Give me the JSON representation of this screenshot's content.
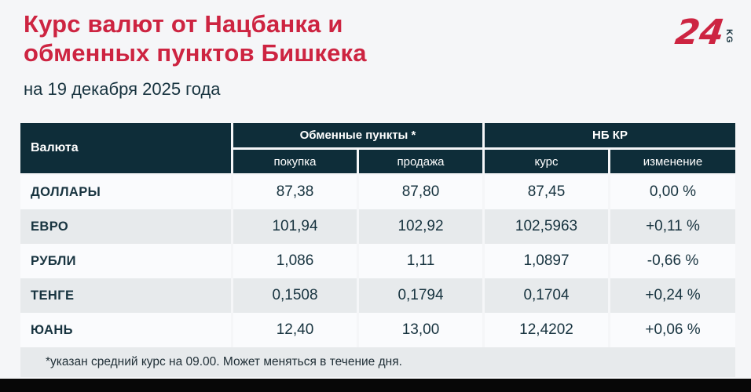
{
  "page": {
    "title_line1": "Курс валют от Нацбанка и",
    "title_line2": "обменных пунктов Бишкека",
    "subtitle": "на 19 декабря 2025 года"
  },
  "logo": {
    "number": "24",
    "suffix": "KG"
  },
  "colors": {
    "accent_red": "#cd2441",
    "header_navy": "#0e2d39",
    "stripe_gray": "#e7eaec",
    "row_white": "#fafbfd",
    "page_bg": "#f5f6f8",
    "bottom_bar_black": "#070707"
  },
  "chart_data": {
    "type": "table",
    "title": "Курс валют от Нацбанка и обменных пунктов Бишкека",
    "subtitle": "на 19 декабря 2025 года",
    "header": {
      "currency_col": "Валюта",
      "group_exchange": "Обменные пункты *",
      "group_nbkr": "НБ КР",
      "sub_buy": "покупка",
      "sub_sell": "продажа",
      "sub_rate": "курс",
      "sub_change": "изменение"
    },
    "rows": [
      {
        "currency": "ДОЛЛАРЫ",
        "buy": "87,38",
        "sell": "87,80",
        "rate": "87,45",
        "change": "0,00 %"
      },
      {
        "currency": "ЕВРО",
        "buy": "101,94",
        "sell": "102,92",
        "rate": "102,5963",
        "change": "+0,11 %"
      },
      {
        "currency": "РУБЛИ",
        "buy": "1,086",
        "sell": "1,11",
        "rate": "1,0897",
        "change": "-0,66 %"
      },
      {
        "currency": "ТЕНГЕ",
        "buy": "0,1508",
        "sell": "0,1794",
        "rate": "0,1704",
        "change": "+0,24 %"
      },
      {
        "currency": "ЮАНЬ",
        "buy": "12,40",
        "sell": "13,00",
        "rate": "12,4202",
        "change": "+0,06 %"
      }
    ],
    "footnote": "*указан средний курс на 09.00. Может меняться в течение дня."
  }
}
